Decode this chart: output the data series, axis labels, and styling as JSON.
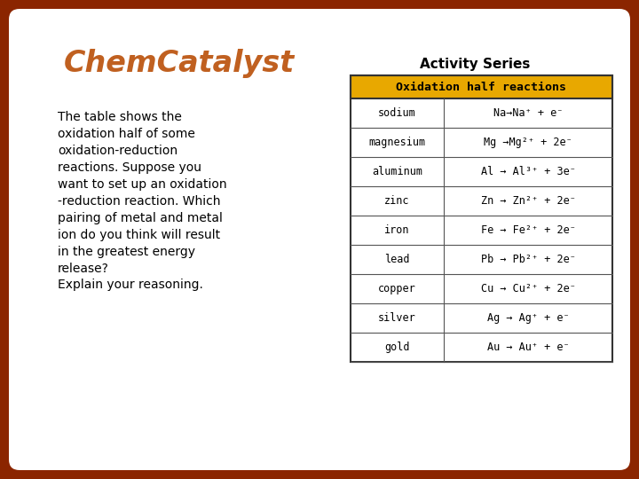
{
  "bg_color": "#8B2500",
  "card_color": "#FFFFFF",
  "title": "ChemCatalyst",
  "title_color": "#C06020",
  "activity_series_label": "Activity Series",
  "table_header": "Oxidation half reactions",
  "table_header_bg": "#E8A800",
  "table_rows": [
    [
      "sodium",
      "Na→Na⁺ + e⁻"
    ],
    [
      "magnesium",
      "Mg →Mg²⁺ + 2e⁻"
    ],
    [
      "aluminum",
      "Al → Al³⁺ + 3e⁻"
    ],
    [
      "zinc",
      "Zn → Zn²⁺ + 2e⁻"
    ],
    [
      "iron",
      "Fe → Fe²⁺ + 2e⁻"
    ],
    [
      "lead",
      "Pb → Pb²⁺ + 2e⁻"
    ],
    [
      "copper",
      "Cu → Cu²⁺ + 2e⁻"
    ],
    [
      "silver",
      "Ag → Ag⁺ + e⁻"
    ],
    [
      "gold",
      "Au → Au⁺ + e⁻"
    ]
  ],
  "body_text": "The table shows the\noxidation half of some\noxidation-reduction\nreactions. Suppose you\nwant to set up an oxidation\n-reduction reaction. Which\npairing of metal and metal\nion do you think will result\nin the greatest energy\nrelease?\nExplain your reasoning.",
  "nav_color": "#FFFFFF",
  "row_colors": [
    "#FFFFFF",
    "#FFFFFF"
  ]
}
